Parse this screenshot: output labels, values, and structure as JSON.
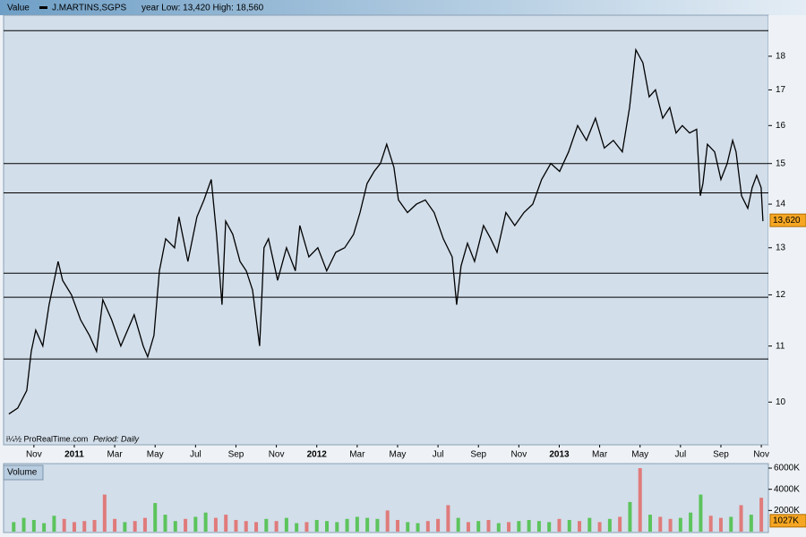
{
  "chart_data": [
    {
      "type": "line",
      "label": "Value",
      "subtitle": "year Low: 13,420 High: 18,560",
      "source": "i¼½ ProRealTime.com",
      "period": "Period: Daily",
      "log_scale": true,
      "series": [
        {
          "name": "J.MARTINS,SGPS",
          "color": "#000000",
          "x": [
            -0.24,
            0.2,
            0.65,
            0.87,
            1.09,
            1.44,
            1.75,
            2.2,
            2.42,
            2.86,
            3.31,
            3.75,
            4.1,
            4.41,
            4.85,
            5.3,
            5.96,
            6.41,
            6.63,
            6.94,
            7.21,
            7.52,
            7.96,
            8.18,
            8.62,
            9.07,
            9.42,
            9.78,
            10.04,
            10.31,
            10.49,
            10.84,
            11.2,
            11.51,
            11.82,
            12.17,
            12.39,
            12.61,
            13.06,
            13.5,
            13.94,
            14.16,
            14.61,
            15.05,
            15.49,
            15.94,
            16.38,
            16.82,
            17.14,
            17.49,
            17.84,
            18.15,
            18.46,
            18.82,
            19.04,
            19.49,
            19.93,
            20.37,
            20.81,
            21.26,
            21.7,
            21.92,
            22.14,
            22.46,
            22.81,
            23.25,
            23.61,
            23.92,
            24.36,
            24.8,
            25.25,
            25.69,
            26.13,
            26.58,
            27.02,
            27.46,
            27.91,
            28.35,
            28.79,
            29.23,
            29.68,
            30.12,
            30.48,
            30.79,
            31.14,
            31.45,
            31.76,
            32.12,
            32.47,
            32.78,
            33.09,
            33.45,
            33.8,
            33.98,
            34.11,
            34.33,
            34.69,
            35.0,
            35.31,
            35.58,
            35.75,
            36.02,
            36.33,
            36.55,
            36.77,
            36.99,
            37.08
          ],
          "values": [
            9.8,
            9.9,
            10.2,
            10.9,
            11.3,
            11.0,
            11.8,
            12.7,
            12.3,
            12.0,
            11.5,
            11.2,
            10.9,
            11.9,
            11.5,
            11.0,
            11.6,
            11.0,
            10.8,
            11.2,
            12.5,
            13.2,
            13.0,
            13.7,
            12.7,
            13.7,
            14.1,
            14.6,
            13.3,
            11.8,
            13.6,
            13.3,
            12.7,
            12.5,
            12.1,
            11.0,
            13.0,
            13.2,
            12.3,
            13.0,
            12.5,
            13.5,
            12.8,
            13.0,
            12.5,
            12.9,
            13.0,
            13.3,
            13.8,
            14.5,
            14.8,
            15.0,
            15.5,
            14.9,
            14.1,
            13.8,
            14.0,
            14.1,
            13.8,
            13.2,
            12.8,
            11.8,
            12.6,
            13.1,
            12.7,
            13.5,
            13.2,
            12.9,
            13.8,
            13.5,
            13.8,
            14.0,
            14.6,
            15.0,
            14.8,
            15.3,
            16.0,
            15.6,
            16.2,
            15.4,
            15.6,
            15.3,
            16.5,
            18.2,
            17.8,
            16.8,
            17.0,
            16.2,
            16.5,
            15.8,
            16.0,
            15.8,
            15.9,
            14.2,
            14.5,
            15.5,
            15.3,
            14.6,
            15.0,
            15.6,
            15.3,
            14.2,
            13.9,
            14.4,
            14.7,
            14.4,
            13.6
          ]
        }
      ],
      "last_price": {
        "value": 13.62,
        "label": "13,620"
      },
      "hlines": [
        15.0,
        14.27,
        12.45,
        11.95,
        10.76,
        18.8
      ],
      "xlim": [
        -0.5,
        37.35
      ],
      "xticks": [
        {
          "value": 1,
          "label": "Nov"
        },
        {
          "value": 3,
          "label": "2011"
        },
        {
          "value": 5,
          "label": "Mar"
        },
        {
          "value": 7,
          "label": "May"
        },
        {
          "value": 9,
          "label": "Jul"
        },
        {
          "value": 11,
          "label": "Sep"
        },
        {
          "value": 13,
          "label": "Nov"
        },
        {
          "value": 15,
          "label": "2012"
        },
        {
          "value": 17,
          "label": "Mar"
        },
        {
          "value": 19,
          "label": "May"
        },
        {
          "value": 21,
          "label": "Jul"
        },
        {
          "value": 23,
          "label": "Sep"
        },
        {
          "value": 25,
          "label": "Nov"
        },
        {
          "value": 27,
          "label": "2013"
        },
        {
          "value": 29,
          "label": "Mar"
        },
        {
          "value": 31,
          "label": "May"
        },
        {
          "value": 33,
          "label": "Jul"
        },
        {
          "value": 35,
          "label": "Sep"
        },
        {
          "value": 37,
          "label": "Nov"
        }
      ],
      "ylim": [
        9.3,
        19.3
      ],
      "yticks": [
        10,
        11,
        12,
        13,
        14,
        15,
        16,
        17,
        18
      ]
    },
    {
      "type": "bar",
      "title": "Volume",
      "up_color": "#5cc45c",
      "down_color": "#e07b7b",
      "x": [
        0,
        0.5,
        1,
        1.5,
        2,
        2.5,
        3,
        3.5,
        4,
        4.5,
        5,
        5.5,
        6,
        6.5,
        7,
        7.5,
        8,
        8.5,
        9,
        9.5,
        10,
        10.5,
        11,
        11.5,
        12,
        12.5,
        13,
        13.5,
        14,
        14.5,
        15,
        15.5,
        16,
        16.5,
        17,
        17.5,
        18,
        18.5,
        19,
        19.5,
        20,
        20.5,
        21,
        21.5,
        22,
        22.5,
        23,
        23.5,
        24,
        24.5,
        25,
        25.5,
        26,
        26.5,
        27,
        27.5,
        28,
        28.5,
        29,
        29.5,
        30,
        30.5,
        31,
        31.5,
        32,
        32.5,
        33,
        33.5,
        34,
        34.5,
        35,
        35.5,
        36,
        36.5,
        37
      ],
      "values": [
        900,
        1300,
        1100,
        800,
        1500,
        1200,
        900,
        1000,
        1100,
        3500,
        1200,
        900,
        1000,
        1300,
        2700,
        1600,
        1000,
        1200,
        1400,
        1800,
        1300,
        1600,
        1100,
        1000,
        900,
        1200,
        1000,
        1300,
        800,
        900,
        1100,
        1000,
        900,
        1200,
        1400,
        1300,
        1200,
        2000,
        1100,
        900,
        800,
        1000,
        1200,
        2500,
        1300,
        900,
        1000,
        1100,
        800,
        900,
        1000,
        1100,
        1000,
        900,
        1200,
        1100,
        1000,
        1300,
        900,
        1200,
        1400,
        2800,
        6000,
        1600,
        1400,
        1200,
        1300,
        1800,
        3500,
        1500,
        1300,
        1400,
        2500,
        1600,
        3200
      ],
      "last_volume": {
        "value": 1027,
        "label": "1027K"
      },
      "xlim": [
        -0.5,
        37.35
      ],
      "ylim": [
        0,
        6340
      ],
      "yticks": [
        {
          "value": 6000,
          "label": "6000K"
        },
        {
          "value": 4000,
          "label": "4000K"
        },
        {
          "value": 2000,
          "label": "2000K"
        }
      ]
    }
  ]
}
